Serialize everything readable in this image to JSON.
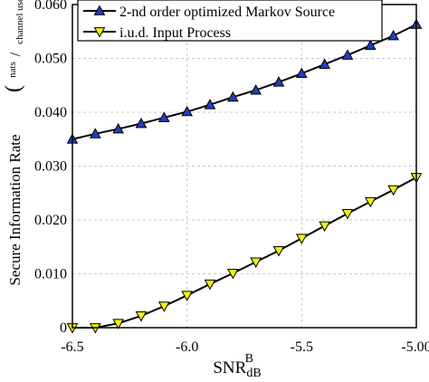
{
  "chart_data": {
    "type": "line",
    "xlabel": "SNR",
    "xlabel_sub": "dB",
    "xlabel_sup": "B",
    "ylabel": "Secure Information Rate",
    "ylabel_unit_top": "nats",
    "ylabel_unit_bottom": "channel use",
    "xlim": [
      -6.5,
      -5.0
    ],
    "ylim": [
      0,
      0.06
    ],
    "xticks": [
      -6.5,
      -6.0,
      -5.5,
      -5.0
    ],
    "xtick_labels": [
      "-6.5",
      "-6.0",
      "-5.5",
      "-5.00"
    ],
    "yticks": [
      0,
      0.01,
      0.02,
      0.03,
      0.04,
      0.05,
      0.06
    ],
    "ytick_labels": [
      "0",
      "0.010",
      "0.020",
      "0.030",
      "0.040",
      "0.050",
      "0.060"
    ],
    "grid": true,
    "legend_position": "top-right",
    "x": [
      -6.5,
      -6.4,
      -6.3,
      -6.2,
      -6.1,
      -6.0,
      -5.9,
      -5.8,
      -5.7,
      -5.6,
      -5.5,
      -5.4,
      -5.3,
      -5.2,
      -5.1,
      -5.0
    ],
    "series": [
      {
        "name": "2-nd order optimized Markov Source",
        "marker": "triangle-up",
        "color": "#1f3fbf",
        "values": [
          0.035,
          0.036,
          0.0369,
          0.0379,
          0.039,
          0.0401,
          0.0414,
          0.0428,
          0.0441,
          0.0456,
          0.0472,
          0.0489,
          0.0506,
          0.0524,
          0.0542,
          0.0563
        ]
      },
      {
        "name": "i.u.d. Input Process",
        "marker": "triangle-down",
        "color": "#f2f20a",
        "values": [
          0.0,
          0.0,
          0.0008,
          0.0022,
          0.004,
          0.006,
          0.0081,
          0.0101,
          0.0122,
          0.0143,
          0.0166,
          0.0189,
          0.0212,
          0.0234,
          0.0256,
          0.0279
        ]
      }
    ]
  }
}
